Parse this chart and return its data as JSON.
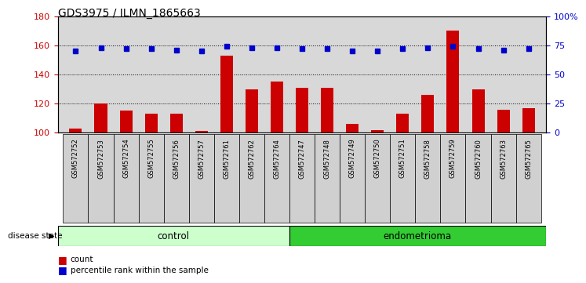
{
  "title": "GDS3975 / ILMN_1865663",
  "samples": [
    "GSM572752",
    "GSM572753",
    "GSM572754",
    "GSM572755",
    "GSM572756",
    "GSM572757",
    "GSM572761",
    "GSM572762",
    "GSM572764",
    "GSM572747",
    "GSM572748",
    "GSM572749",
    "GSM572750",
    "GSM572751",
    "GSM572758",
    "GSM572759",
    "GSM572760",
    "GSM572763",
    "GSM572765"
  ],
  "bar_values": [
    103,
    120,
    115,
    113,
    113,
    101,
    153,
    130,
    135,
    131,
    131,
    106,
    102,
    113,
    126,
    170,
    130,
    116,
    117
  ],
  "dot_values": [
    70,
    73,
    72,
    72,
    71,
    70,
    74,
    73,
    73,
    72,
    72,
    70,
    70,
    72,
    73,
    74,
    72,
    71,
    72
  ],
  "control_count": 9,
  "endometrioma_count": 10,
  "ylim_left": [
    100,
    180
  ],
  "ylim_right": [
    0,
    100
  ],
  "yticks_left": [
    100,
    120,
    140,
    160,
    180
  ],
  "yticks_right": [
    0,
    25,
    50,
    75,
    100
  ],
  "bar_color": "#cc0000",
  "dot_color": "#0000cc",
  "control_color": "#ccffcc",
  "endometrioma_color": "#33cc33",
  "bg_color": "#d8d8d8",
  "tick_bg_color": "#d0d0d0",
  "legend_bar_label": "count",
  "legend_dot_label": "percentile rank within the sample",
  "disease_state_label": "disease state",
  "control_label": "control",
  "endometrioma_label": "endometrioma"
}
